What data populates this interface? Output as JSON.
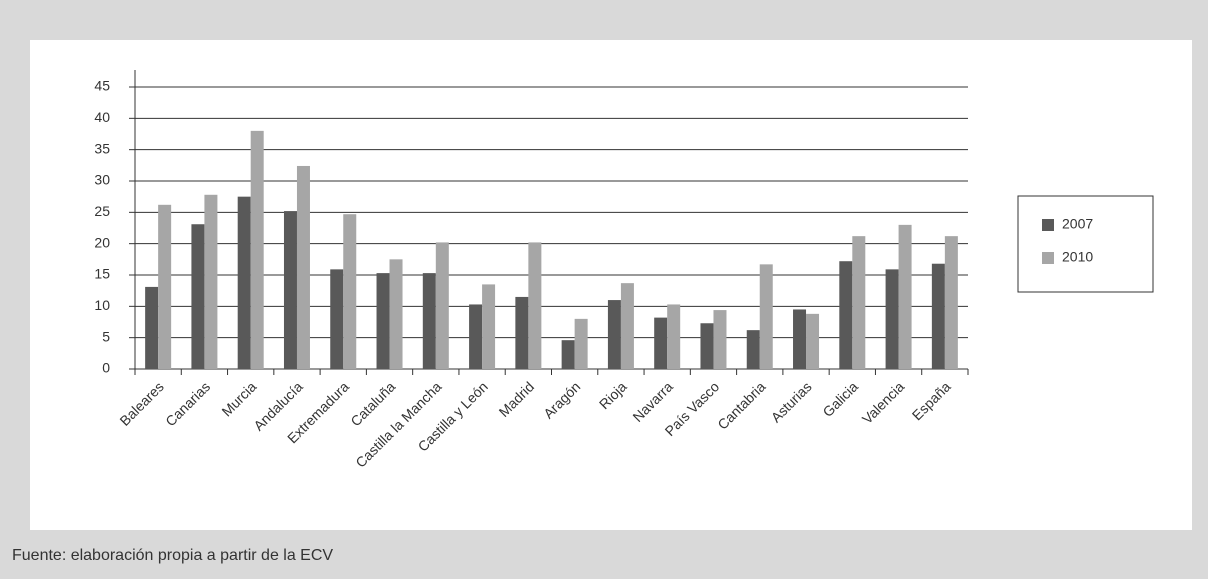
{
  "chart_data": {
    "type": "bar",
    "categories": [
      "Baleares",
      "Canarias",
      "Murcia",
      "Andalucía",
      "Extremadura",
      "Cataluña",
      "Castilla la Mancha",
      "Castilla y León",
      "Madrid",
      "Aragón",
      "Rioja",
      "Navarra",
      "País Vasco",
      "Cantabria",
      "Asturias",
      "Galicia",
      "Valencia",
      "España"
    ],
    "series": [
      {
        "name": "2007",
        "color": "#595959",
        "values": [
          13.1,
          23.1,
          27.5,
          25.2,
          15.9,
          15.3,
          15.3,
          10.3,
          11.5,
          4.6,
          11,
          8.2,
          7.3,
          6.2,
          9.5,
          17.2,
          15.9,
          16.8
        ]
      },
      {
        "name": "2010",
        "color": "#a6a6a6",
        "values": [
          26.2,
          27.8,
          38,
          32.4,
          24.7,
          17.5,
          20.2,
          13.5,
          20.2,
          8,
          13.7,
          10.3,
          9.4,
          16.7,
          8.8,
          21.2,
          23,
          21.2
        ]
      }
    ],
    "ylim": [
      0,
      45
    ],
    "yticks": [
      0,
      5,
      10,
      15,
      20,
      25,
      30,
      35,
      40,
      45
    ],
    "grid": true,
    "legend": "right",
    "source": "Fuente: elaboración propia a partir de la ECV"
  }
}
